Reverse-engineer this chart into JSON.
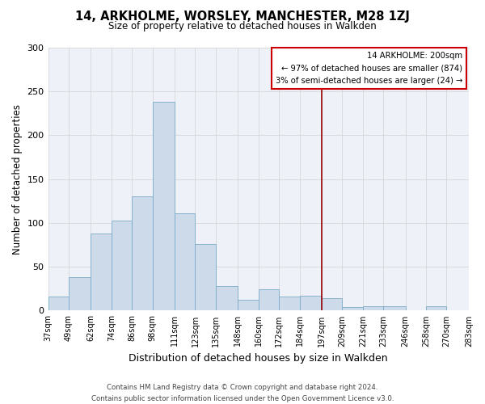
{
  "title": "14, ARKHOLME, WORSLEY, MANCHESTER, M28 1ZJ",
  "subtitle": "Size of property relative to detached houses in Walkden",
  "xlabel": "Distribution of detached houses by size in Walkden",
  "ylabel": "Number of detached properties",
  "bar_color": "#ccdaea",
  "bar_edge_color": "#7aaac8",
  "background_color": "#ffffff",
  "plot_bg_color": "#eef2f8",
  "grid_color": "#d0d0d0",
  "vline_x": 197,
  "vline_color": "#990000",
  "annotation_title": "14 ARKHOLME: 200sqm",
  "annotation_line1": "← 97% of detached houses are smaller (874)",
  "annotation_line2": "3% of semi-detached houses are larger (24) →",
  "annotation_box_color": "#ffffff",
  "annotation_box_edge": "#cc0000",
  "bins": [
    37,
    49,
    62,
    74,
    86,
    98,
    111,
    123,
    135,
    148,
    160,
    172,
    184,
    197,
    209,
    221,
    233,
    246,
    258,
    270,
    283
  ],
  "heights": [
    16,
    38,
    88,
    103,
    130,
    238,
    111,
    76,
    28,
    12,
    24,
    16,
    17,
    14,
    4,
    5,
    5,
    0,
    5,
    0
  ],
  "ylim": [
    0,
    300
  ],
  "yticks": [
    0,
    50,
    100,
    150,
    200,
    250,
    300
  ],
  "tick_labels": [
    "37sqm",
    "49sqm",
    "62sqm",
    "74sqm",
    "86sqm",
    "98sqm",
    "111sqm",
    "123sqm",
    "135sqm",
    "148sqm",
    "160sqm",
    "172sqm",
    "184sqm",
    "197sqm",
    "209sqm",
    "221sqm",
    "233sqm",
    "246sqm",
    "258sqm",
    "270sqm",
    "283sqm"
  ],
  "footer1": "Contains HM Land Registry data © Crown copyright and database right 2024.",
  "footer2": "Contains public sector information licensed under the Open Government Licence v3.0."
}
